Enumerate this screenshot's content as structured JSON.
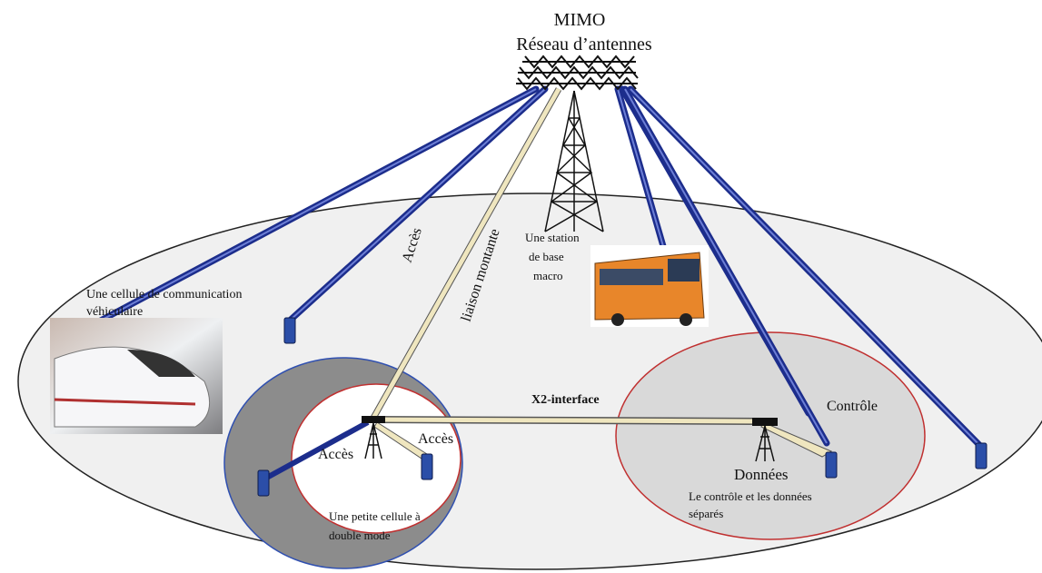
{
  "title": {
    "line1": "MIMO",
    "line2": "Réseau d’antennes"
  },
  "labels": {
    "access_beam": "Accès",
    "uplink": "liaison montante",
    "macro_station": [
      "Une station",
      "de base",
      "macro"
    ],
    "vehicular_cell": [
      "Une cellule de communication",
      "véhiculaire"
    ],
    "x2_interface": "X2-interface",
    "control": "Contrôle",
    "access_left": "Accès",
    "access_right": "Accès",
    "data": "Données",
    "separated": [
      "Le contrôle et les données",
      "séparés"
    ],
    "small_cell": [
      "Une petite cellule à",
      "double mode"
    ]
  }
}
